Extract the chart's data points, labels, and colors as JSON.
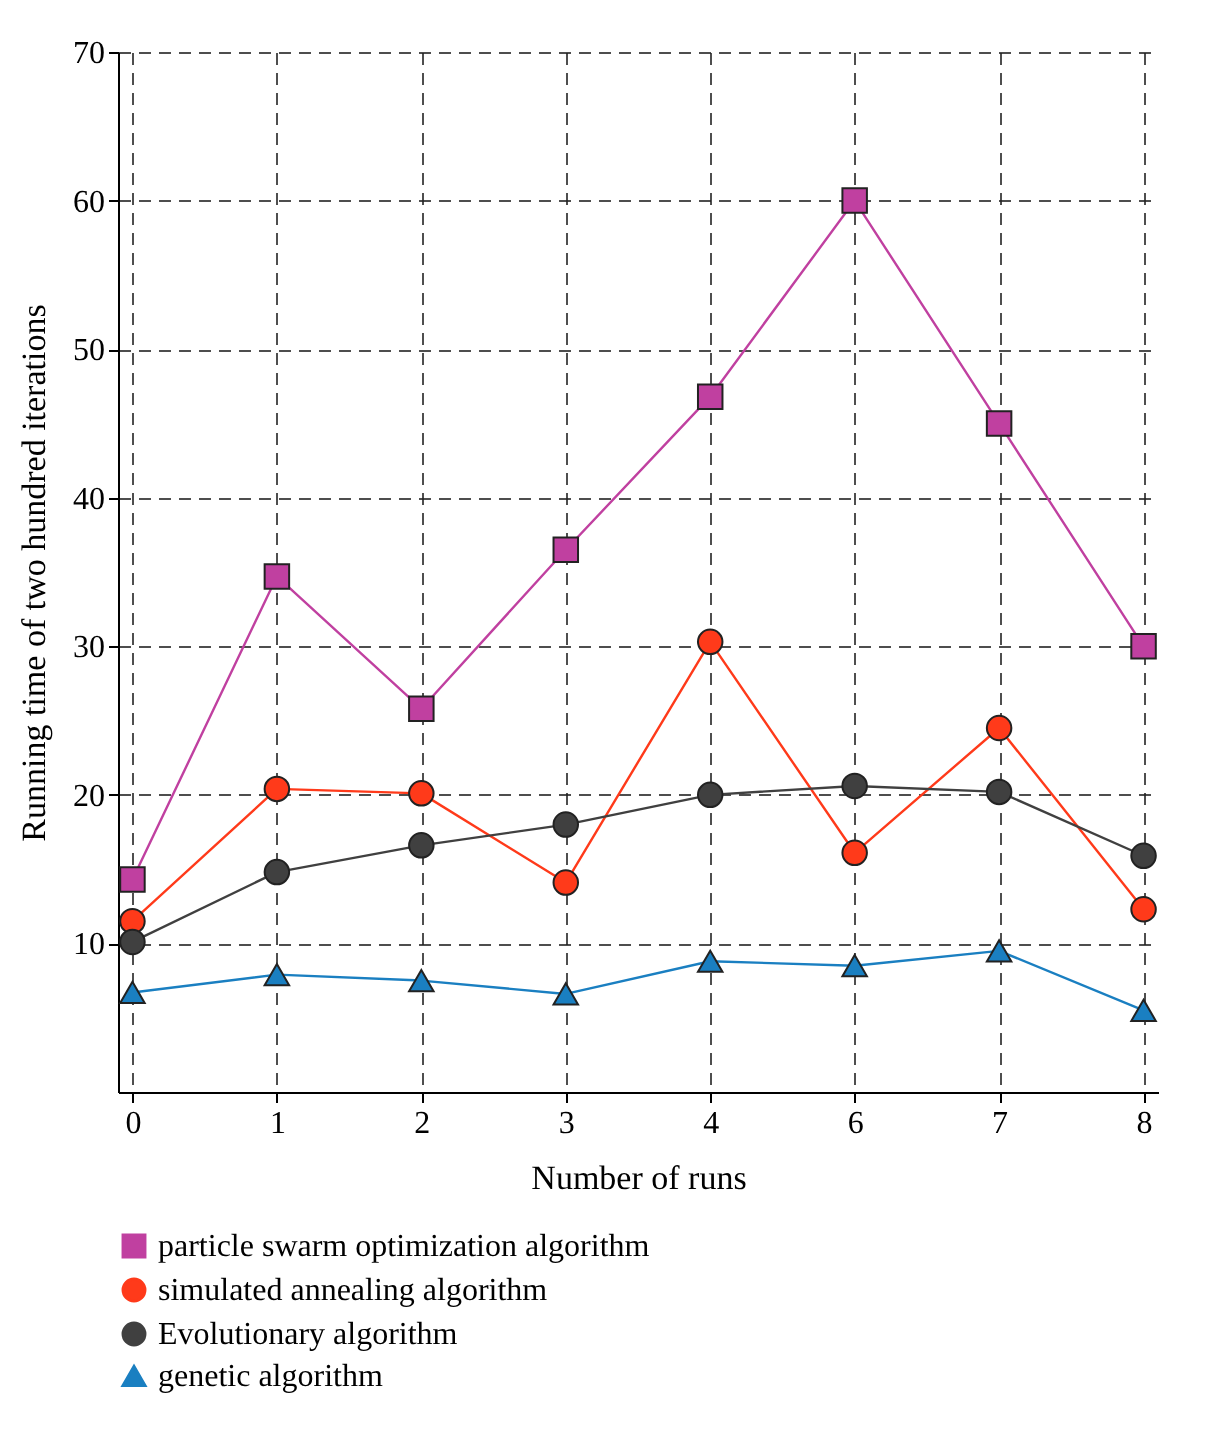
{
  "chart_data": {
    "type": "line",
    "xlabel": "Number of runs",
    "ylabel": "Running time of two hundred iterations",
    "categories": [
      "0",
      "1",
      "2",
      "3",
      "4",
      "6",
      "7",
      "8"
    ],
    "ylim": [
      0,
      70
    ],
    "yticks": [
      10,
      20,
      30,
      40,
      50,
      60,
      70
    ],
    "grid": true,
    "legend": "bottom",
    "line_style": "solid",
    "series": [
      {
        "name": "particle swarm optimization algorithm",
        "color": "#c040a0",
        "marker": "square",
        "values": [
          14.3,
          34.7,
          25.8,
          36.5,
          46.8,
          60,
          45,
          30
        ]
      },
      {
        "name": "simulated annealing algorithm",
        "color": "#ff3a1a",
        "marker": "circle",
        "values": [
          11.5,
          20.4,
          20.1,
          14.1,
          30.3,
          16.1,
          24.5,
          12.3
        ]
      },
      {
        "name": "Evolutionary algorithm",
        "color": "#404040",
        "marker": "circle",
        "values": [
          10.1,
          14.8,
          16.6,
          18,
          20,
          20.6,
          20.2,
          15.9
        ]
      },
      {
        "name": "genetic algorithm",
        "color": "#1a7fc1",
        "marker": "triangle",
        "values": [
          6.7,
          7.9,
          7.5,
          6.6,
          8.8,
          8.5,
          9.5,
          5.5
        ]
      }
    ]
  }
}
